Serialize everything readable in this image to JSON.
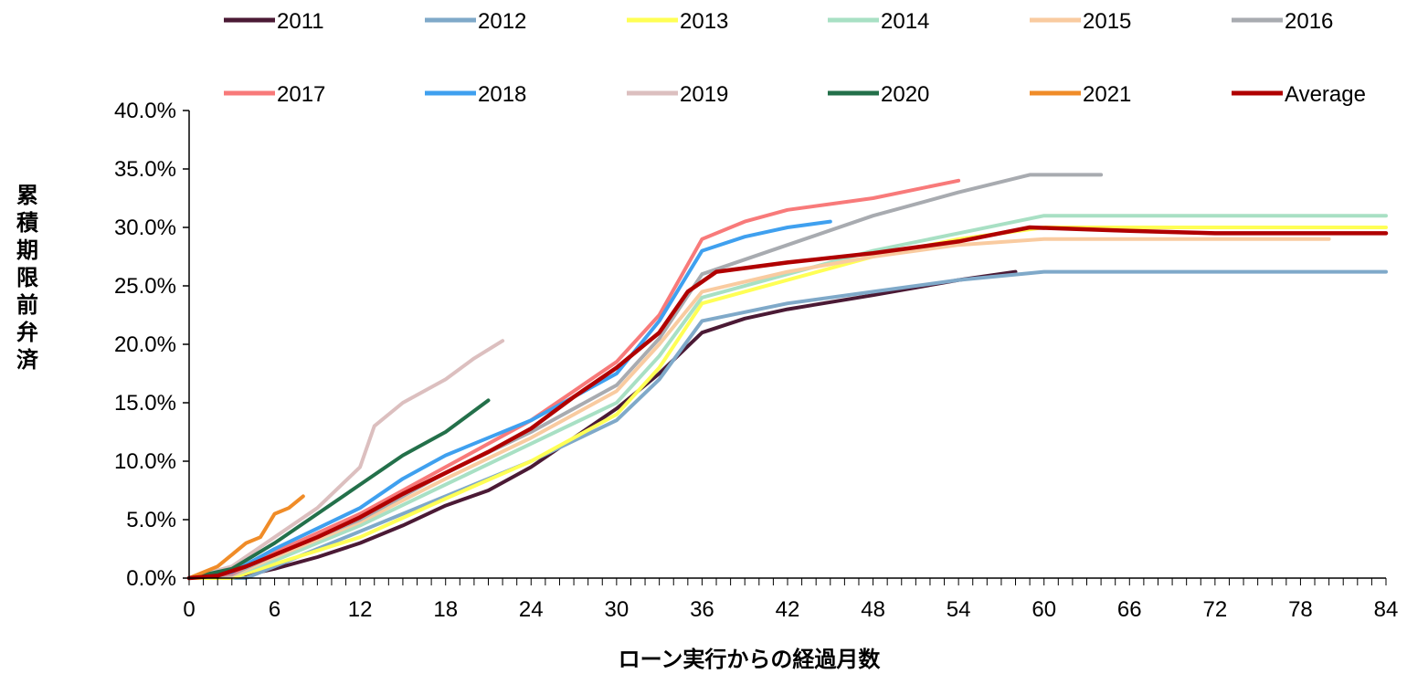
{
  "chart_data": {
    "type": "line",
    "title": "",
    "xlabel": "ローン実行からの経過月数",
    "ylabel": "累積期限前弁済",
    "xlim": [
      0,
      84
    ],
    "ylim": [
      0,
      0.4
    ],
    "x_ticks": [
      "0",
      "6",
      "12",
      "18",
      "24",
      "30",
      "36",
      "42",
      "48",
      "54",
      "60",
      "66",
      "72",
      "78",
      "84"
    ],
    "y_ticks": [
      "0.0%",
      "5.0%",
      "10.0%",
      "15.0%",
      "20.0%",
      "25.0%",
      "30.0%",
      "35.0%",
      "40.0%"
    ],
    "legend_position": "top",
    "grid": false,
    "series": [
      {
        "name": "2011",
        "color": "#4b1a35",
        "values": [
          [
            0,
            0
          ],
          [
            3,
            0
          ],
          [
            6,
            0.008
          ],
          [
            9,
            0.018
          ],
          [
            12,
            0.03
          ],
          [
            15,
            0.045
          ],
          [
            18,
            0.062
          ],
          [
            21,
            0.075
          ],
          [
            24,
            0.095
          ],
          [
            27,
            0.12
          ],
          [
            30,
            0.145
          ],
          [
            33,
            0.175
          ],
          [
            36,
            0.21
          ],
          [
            39,
            0.222
          ],
          [
            42,
            0.23
          ],
          [
            48,
            0.242
          ],
          [
            54,
            0.255
          ],
          [
            58,
            0.262
          ]
        ]
      },
      {
        "name": "2012",
        "color": "#7fa9c9",
        "values": [
          [
            0,
            0
          ],
          [
            4,
            0
          ],
          [
            8,
            0.02
          ],
          [
            12,
            0.04
          ],
          [
            18,
            0.07
          ],
          [
            24,
            0.1
          ],
          [
            30,
            0.135
          ],
          [
            33,
            0.17
          ],
          [
            36,
            0.22
          ],
          [
            42,
            0.235
          ],
          [
            48,
            0.245
          ],
          [
            54,
            0.255
          ],
          [
            60,
            0.262
          ],
          [
            84,
            0.262
          ]
        ]
      },
      {
        "name": "2013",
        "color": "#ffff55",
        "values": [
          [
            0,
            0
          ],
          [
            3,
            0
          ],
          [
            6,
            0.012
          ],
          [
            12,
            0.035
          ],
          [
            18,
            0.068
          ],
          [
            24,
            0.1
          ],
          [
            30,
            0.14
          ],
          [
            33,
            0.18
          ],
          [
            36,
            0.235
          ],
          [
            42,
            0.255
          ],
          [
            48,
            0.275
          ],
          [
            54,
            0.29
          ],
          [
            60,
            0.3
          ],
          [
            84,
            0.3
          ]
        ]
      },
      {
        "name": "2014",
        "color": "#a8e0c4",
        "values": [
          [
            0,
            0
          ],
          [
            3,
            0.002
          ],
          [
            6,
            0.015
          ],
          [
            12,
            0.045
          ],
          [
            18,
            0.08
          ],
          [
            24,
            0.115
          ],
          [
            30,
            0.15
          ],
          [
            33,
            0.19
          ],
          [
            36,
            0.24
          ],
          [
            42,
            0.26
          ],
          [
            48,
            0.28
          ],
          [
            54,
            0.295
          ],
          [
            60,
            0.31
          ],
          [
            84,
            0.31
          ]
        ]
      },
      {
        "name": "2015",
        "color": "#f9cba0",
        "values": [
          [
            0,
            0
          ],
          [
            3,
            0.002
          ],
          [
            6,
            0.018
          ],
          [
            12,
            0.048
          ],
          [
            18,
            0.085
          ],
          [
            24,
            0.12
          ],
          [
            30,
            0.16
          ],
          [
            33,
            0.2
          ],
          [
            36,
            0.245
          ],
          [
            42,
            0.262
          ],
          [
            48,
            0.275
          ],
          [
            54,
            0.285
          ],
          [
            60,
            0.29
          ],
          [
            80,
            0.29
          ]
        ]
      },
      {
        "name": "2016",
        "color": "#a8abb0",
        "values": [
          [
            0,
            0
          ],
          [
            3,
            0.003
          ],
          [
            6,
            0.02
          ],
          [
            12,
            0.05
          ],
          [
            18,
            0.09
          ],
          [
            24,
            0.125
          ],
          [
            30,
            0.165
          ],
          [
            33,
            0.205
          ],
          [
            36,
            0.26
          ],
          [
            42,
            0.285
          ],
          [
            48,
            0.31
          ],
          [
            54,
            0.33
          ],
          [
            59,
            0.345
          ],
          [
            64,
            0.345
          ]
        ]
      },
      {
        "name": "2017",
        "color": "#f87a7a",
        "values": [
          [
            0,
            0
          ],
          [
            3,
            0.004
          ],
          [
            6,
            0.022
          ],
          [
            12,
            0.055
          ],
          [
            18,
            0.095
          ],
          [
            24,
            0.135
          ],
          [
            30,
            0.185
          ],
          [
            33,
            0.225
          ],
          [
            36,
            0.29
          ],
          [
            39,
            0.305
          ],
          [
            42,
            0.315
          ],
          [
            48,
            0.325
          ],
          [
            54,
            0.34
          ]
        ]
      },
      {
        "name": "2018",
        "color": "#3fa0ef",
        "values": [
          [
            0,
            0
          ],
          [
            3,
            0.005
          ],
          [
            6,
            0.025
          ],
          [
            12,
            0.06
          ],
          [
            15,
            0.085
          ],
          [
            18,
            0.105
          ],
          [
            24,
            0.135
          ],
          [
            30,
            0.175
          ],
          [
            33,
            0.22
          ],
          [
            36,
            0.28
          ],
          [
            39,
            0.292
          ],
          [
            42,
            0.3
          ],
          [
            45,
            0.305
          ]
        ]
      },
      {
        "name": "2019",
        "color": "#dcbfbf",
        "values": [
          [
            0,
            0
          ],
          [
            3,
            0.01
          ],
          [
            6,
            0.035
          ],
          [
            9,
            0.06
          ],
          [
            12,
            0.095
          ],
          [
            13,
            0.13
          ],
          [
            15,
            0.15
          ],
          [
            18,
            0.17
          ],
          [
            20,
            0.188
          ],
          [
            22,
            0.203
          ]
        ]
      },
      {
        "name": "2020",
        "color": "#23704a",
        "values": [
          [
            0,
            0
          ],
          [
            3,
            0.008
          ],
          [
            6,
            0.03
          ],
          [
            9,
            0.055
          ],
          [
            12,
            0.08
          ],
          [
            15,
            0.105
          ],
          [
            18,
            0.125
          ],
          [
            21,
            0.152
          ]
        ]
      },
      {
        "name": "2021",
        "color": "#f08c28",
        "values": [
          [
            0,
            0
          ],
          [
            2,
            0.01
          ],
          [
            4,
            0.03
          ],
          [
            5,
            0.035
          ],
          [
            6,
            0.055
          ],
          [
            7,
            0.06
          ],
          [
            8,
            0.07
          ]
        ]
      },
      {
        "name": "Average",
        "color": "#b00000",
        "values": [
          [
            0,
            0
          ],
          [
            2,
            0.002
          ],
          [
            4,
            0.01
          ],
          [
            6,
            0.02
          ],
          [
            9,
            0.035
          ],
          [
            12,
            0.052
          ],
          [
            15,
            0.072
          ],
          [
            18,
            0.09
          ],
          [
            21,
            0.108
          ],
          [
            24,
            0.128
          ],
          [
            27,
            0.155
          ],
          [
            30,
            0.18
          ],
          [
            33,
            0.21
          ],
          [
            35,
            0.245
          ],
          [
            37,
            0.262
          ],
          [
            42,
            0.27
          ],
          [
            48,
            0.278
          ],
          [
            54,
            0.288
          ],
          [
            59,
            0.3
          ],
          [
            66,
            0.297
          ],
          [
            72,
            0.295
          ],
          [
            78,
            0.295
          ],
          [
            84,
            0.295
          ]
        ]
      }
    ]
  }
}
